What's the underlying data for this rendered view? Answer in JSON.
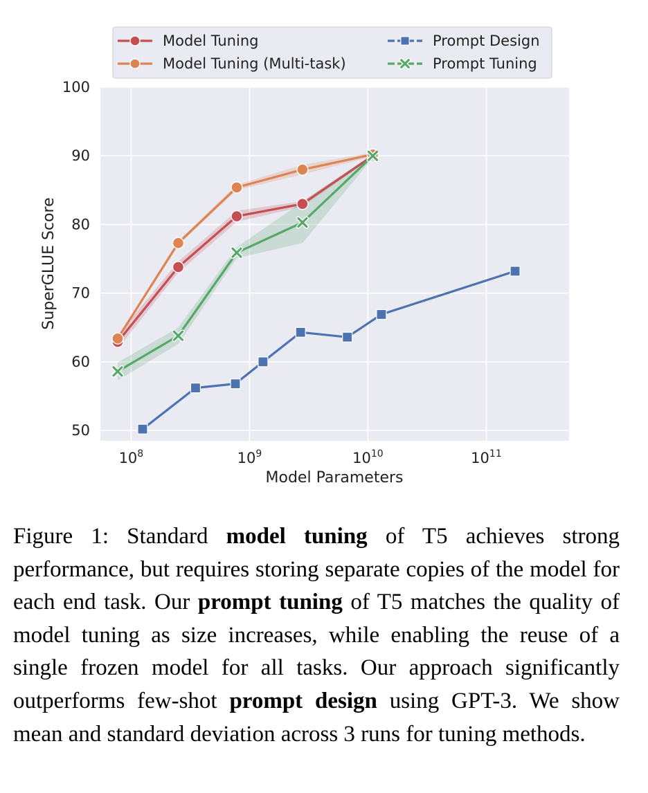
{
  "chart_data": {
    "type": "line",
    "xscale": "log",
    "xlabel": "Model Parameters",
    "ylabel": "SuperGLUE Score",
    "xlim": [
      55000000.0,
      500000000000.0
    ],
    "ylim": [
      48.5,
      100
    ],
    "xticks": [
      {
        "value": 100000000.0,
        "base": "10",
        "exp": "8"
      },
      {
        "value": 1000000000.0,
        "base": "10",
        "exp": "9"
      },
      {
        "value": 10000000000.0,
        "base": "10",
        "exp": "10"
      },
      {
        "value": 100000000000.0,
        "base": "10",
        "exp": "11"
      }
    ],
    "yticks": [
      {
        "value": 50,
        "label": "50"
      },
      {
        "value": 60,
        "label": "60"
      },
      {
        "value": 70,
        "label": "70"
      },
      {
        "value": 80,
        "label": "80"
      },
      {
        "value": 90,
        "label": "90"
      },
      {
        "value": 100,
        "label": "100"
      }
    ],
    "grid": true,
    "legend_position": "top",
    "series": [
      {
        "name": "Model Tuning",
        "color": "#c44e52",
        "marker": "circle",
        "x": [
          77000000.0,
          250000000.0,
          780000000.0,
          2800000000.0,
          11000000000.0
        ],
        "y": [
          62.9,
          73.8,
          81.2,
          83.0,
          90.0
        ],
        "band": [
          1.0,
          0.8,
          0.8,
          0.4,
          0.2
        ]
      },
      {
        "name": "Model Tuning (Multi-task)",
        "color": "#dd8452",
        "marker": "circle",
        "x": [
          77000000.0,
          250000000.0,
          780000000.0,
          2800000000.0,
          11000000000.0
        ],
        "y": [
          63.4,
          77.3,
          85.4,
          88.0,
          90.2
        ],
        "band": [
          0.3,
          0.3,
          0.4,
          0.7,
          0.3
        ]
      },
      {
        "name": "Prompt Design",
        "color": "#4c72b0",
        "marker": "square",
        "x": [
          125000000.0,
          350000000.0,
          760000000.0,
          1300000000.0,
          2700000000.0,
          6700000000.0,
          13000000000.0,
          175000000000.0
        ],
        "y": [
          50.2,
          56.2,
          56.8,
          60.0,
          64.3,
          63.6,
          66.9,
          73.2
        ]
      },
      {
        "name": "Prompt Tuning",
        "color": "#55a868",
        "marker": "x",
        "x": [
          77000000.0,
          250000000.0,
          780000000.0,
          2800000000.0,
          11000000000.0
        ],
        "y": [
          58.6,
          63.8,
          75.9,
          80.3,
          90.0
        ],
        "band": [
          1.3,
          1.2,
          0.8,
          3.0,
          0.3
        ]
      }
    ]
  },
  "caption": {
    "label": "Figure 1:",
    "t1": " Standard ",
    "b1": "model tuning",
    "t2": " of T5 achieves strong performance, but requires storing separate copies of the model for each end task.  Our ",
    "b2": "prompt tuning",
    "t3": " of T5 matches the quality of model tuning as size increases, while enabling the reuse of a single frozen model for all tasks. Our approach significantly outperforms few-shot ",
    "b3": "prompt design",
    "t4": " using GPT-3. We show mean and standard deviation across 3 runs for tuning methods."
  }
}
